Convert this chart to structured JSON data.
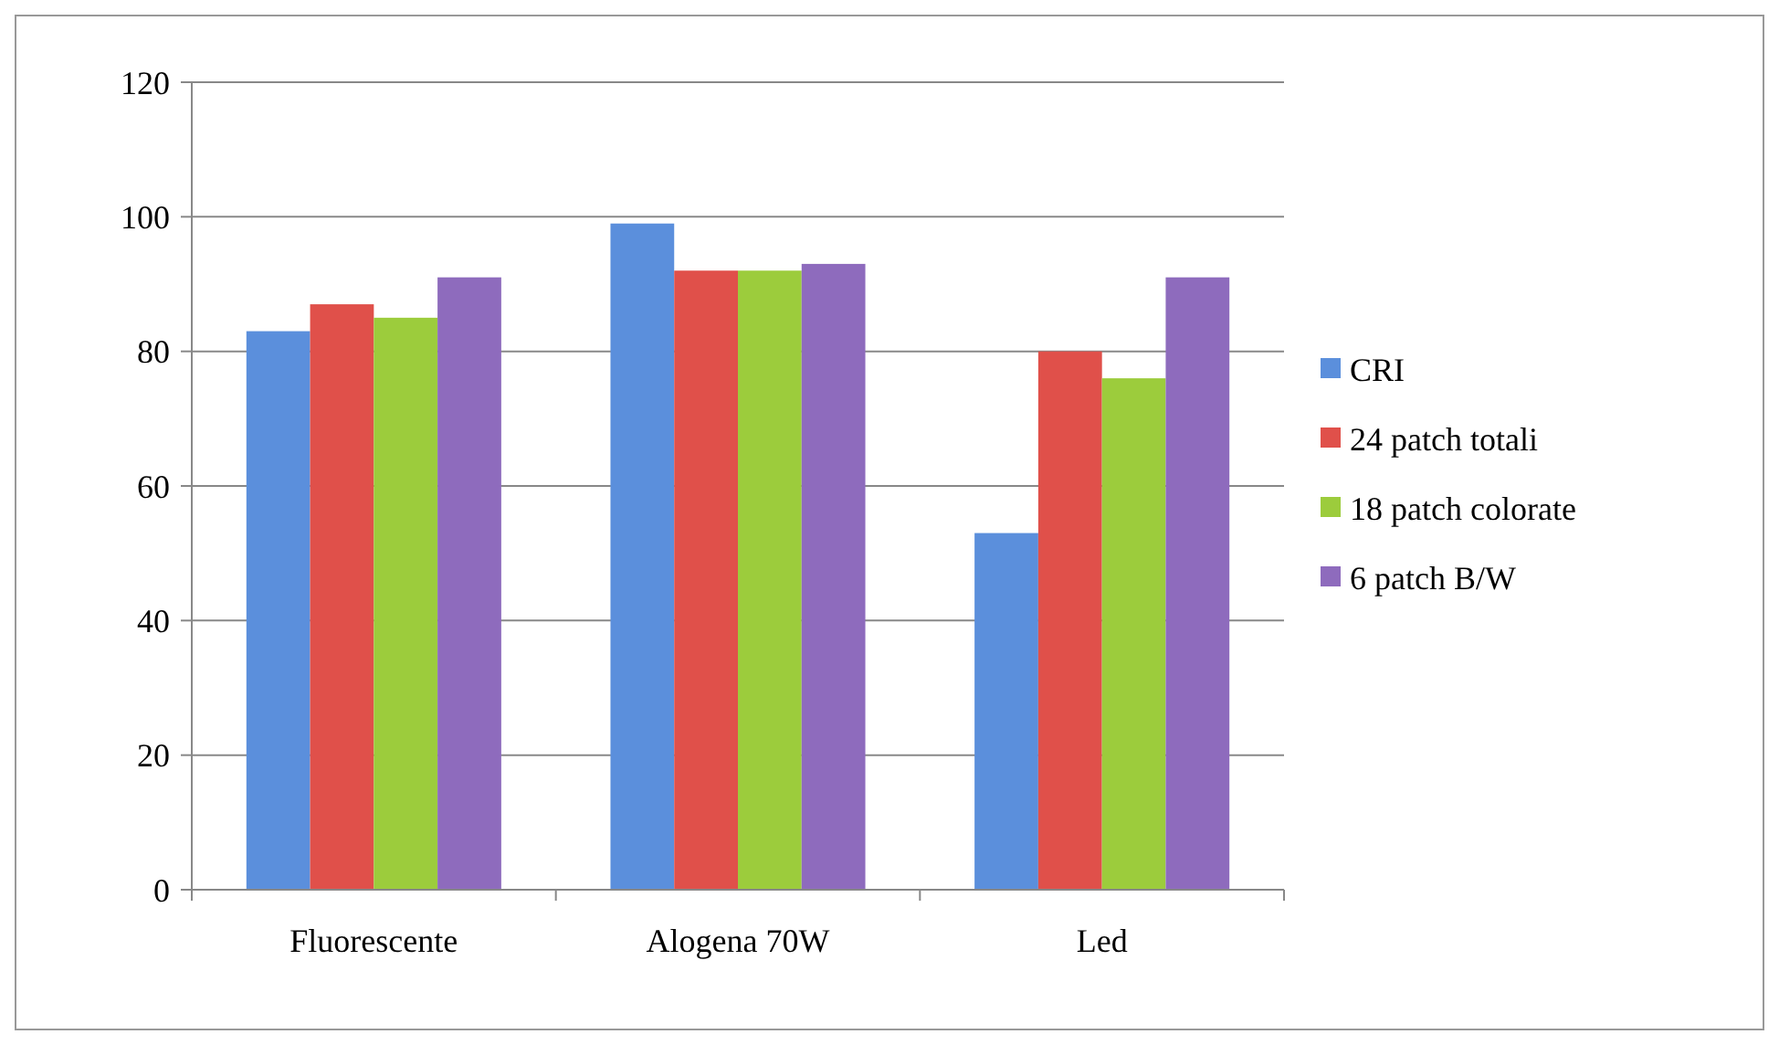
{
  "chart_data": {
    "type": "bar",
    "categories": [
      "Fluorescente",
      "Alogena 70W",
      "Led"
    ],
    "series": [
      {
        "name": "CRI",
        "color": "#5b8fdc",
        "values": [
          83,
          99,
          53
        ]
      },
      {
        "name": "24 patch totali",
        "color": "#e0504a",
        "values": [
          87,
          92,
          80
        ]
      },
      {
        "name": "18 patch colorate",
        "color": "#9ccc3c",
        "values": [
          85,
          92,
          76
        ]
      },
      {
        "name": "6 patch B/W",
        "color": "#8e6bbd",
        "values": [
          91,
          93,
          91
        ]
      }
    ],
    "ylim": [
      0,
      120
    ],
    "yticks": [
      0,
      20,
      40,
      60,
      80,
      100,
      120
    ],
    "grid": "y",
    "legend": "right"
  }
}
